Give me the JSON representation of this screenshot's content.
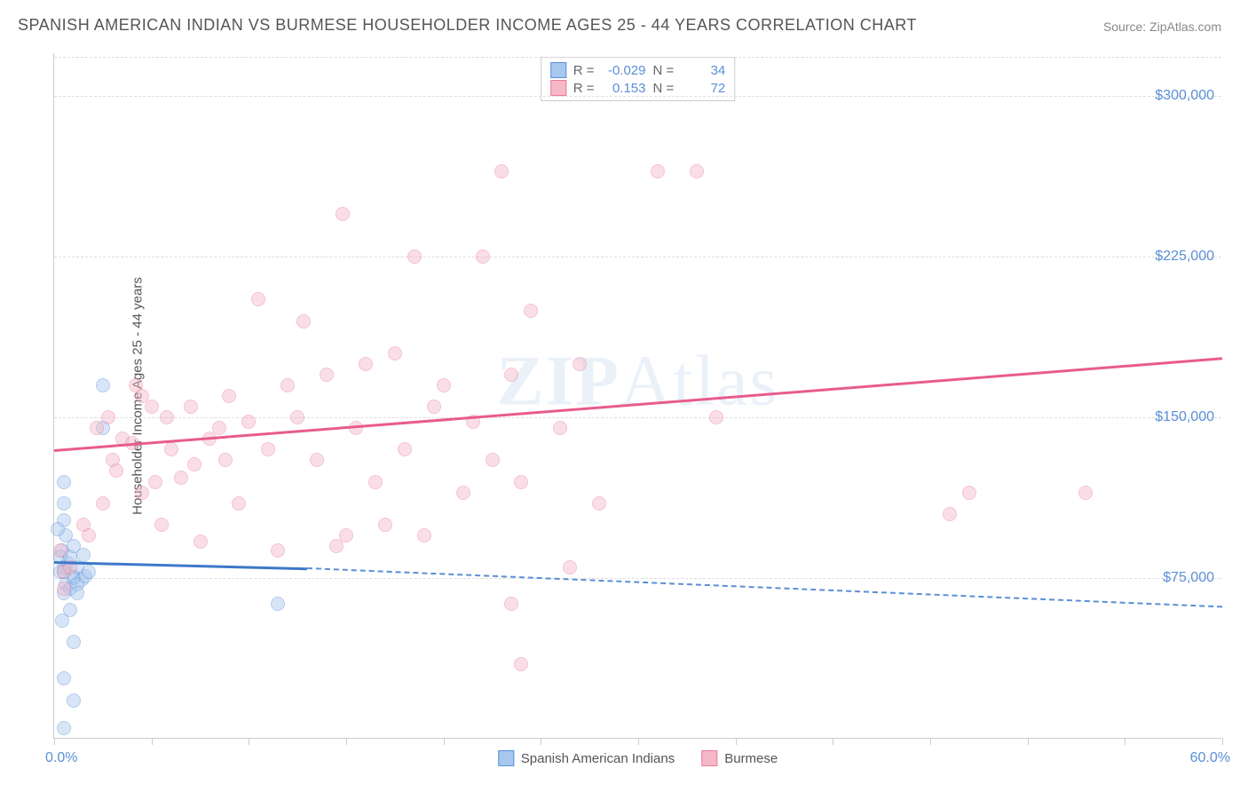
{
  "title": "SPANISH AMERICAN INDIAN VS BURMESE HOUSEHOLDER INCOME AGES 25 - 44 YEARS CORRELATION CHART",
  "source": "Source: ZipAtlas.com",
  "watermark_zip": "ZIP",
  "watermark_atlas": "Atlas",
  "chart": {
    "type": "scatter",
    "y_axis_title": "Householder Income Ages 25 - 44 years",
    "xlim": [
      0,
      60
    ],
    "ylim": [
      0,
      320000
    ],
    "x_tick_positions": [
      0,
      5,
      10,
      15,
      20,
      25,
      30,
      35,
      40,
      45,
      50,
      55,
      60
    ],
    "x_label_min": "0.0%",
    "x_label_max": "60.0%",
    "y_ticks": [
      75000,
      150000,
      225000,
      300000
    ],
    "y_tick_labels": [
      "$75,000",
      "$150,000",
      "$225,000",
      "$300,000"
    ],
    "grid_color": "#dddddd",
    "background_color": "#ffffff",
    "axis_color": "#cccccc",
    "tick_label_color": "#5a8fd6",
    "point_radius": 8,
    "point_opacity": 0.45,
    "series": [
      {
        "name": "Spanish American Indians",
        "color_fill": "#a7c7ef",
        "color_stroke": "#5a8fd6",
        "r_value": "-0.029",
        "n_value": "34",
        "trend": {
          "x1": 0,
          "y1": 83000,
          "x2": 13,
          "y2": 80000,
          "extend_x2": 60,
          "extend_y2": 62000,
          "solid_color": "#3d78c9",
          "dash_color": "#5a8fd6"
        },
        "points": [
          [
            0.5,
            120000
          ],
          [
            0.5,
            110000
          ],
          [
            0.5,
            102000
          ],
          [
            0.6,
            95000
          ],
          [
            0.4,
            88000
          ],
          [
            0.7,
            82000
          ],
          [
            0.3,
            85000
          ],
          [
            0.5,
            78000
          ],
          [
            0.5,
            80000
          ],
          [
            0.8,
            85000
          ],
          [
            1.0,
            90000
          ],
          [
            0.6,
            72000
          ],
          [
            1.0,
            76000
          ],
          [
            1.2,
            80000
          ],
          [
            0.8,
            70000
          ],
          [
            0.5,
            68000
          ],
          [
            0.8,
            60000
          ],
          [
            1.0,
            75000
          ],
          [
            1.4,
            74000
          ],
          [
            1.2,
            72000
          ],
          [
            1.6,
            76000
          ],
          [
            2.5,
            165000
          ],
          [
            2.5,
            145000
          ],
          [
            0.4,
            55000
          ],
          [
            1.0,
            45000
          ],
          [
            0.5,
            28000
          ],
          [
            1.0,
            18000
          ],
          [
            0.5,
            5000
          ],
          [
            0.2,
            98000
          ],
          [
            1.5,
            86000
          ],
          [
            1.2,
            68000
          ],
          [
            0.3,
            78000
          ],
          [
            1.8,
            78000
          ],
          [
            11.5,
            63000
          ]
        ]
      },
      {
        "name": "Burmese",
        "color_fill": "#f6b8c8",
        "color_stroke": "#e87a9b",
        "r_value": "0.153",
        "n_value": "72",
        "trend": {
          "x1": 0,
          "y1": 135000,
          "x2": 60,
          "y2": 178000,
          "solid_color": "#e85c8a"
        },
        "points": [
          [
            0.5,
            78000
          ],
          [
            0.5,
            70000
          ],
          [
            0.3,
            88000
          ],
          [
            0.8,
            80000
          ],
          [
            1.5,
            100000
          ],
          [
            1.8,
            95000
          ],
          [
            2.2,
            145000
          ],
          [
            2.5,
            110000
          ],
          [
            2.8,
            150000
          ],
          [
            3.0,
            130000
          ],
          [
            3.5,
            140000
          ],
          [
            3.2,
            125000
          ],
          [
            4.0,
            138000
          ],
          [
            4.2,
            165000
          ],
          [
            4.5,
            115000
          ],
          [
            5.0,
            155000
          ],
          [
            5.2,
            120000
          ],
          [
            5.5,
            100000
          ],
          [
            5.8,
            150000
          ],
          [
            6.0,
            135000
          ],
          [
            6.5,
            122000
          ],
          [
            7.0,
            155000
          ],
          [
            7.2,
            128000
          ],
          [
            7.5,
            92000
          ],
          [
            8.0,
            140000
          ],
          [
            8.5,
            145000
          ],
          [
            8.8,
            130000
          ],
          [
            9.0,
            160000
          ],
          [
            9.5,
            110000
          ],
          [
            10.0,
            148000
          ],
          [
            10.5,
            205000
          ],
          [
            11.0,
            135000
          ],
          [
            11.5,
            88000
          ],
          [
            12.0,
            165000
          ],
          [
            12.5,
            150000
          ],
          [
            12.8,
            195000
          ],
          [
            13.5,
            130000
          ],
          [
            14.0,
            170000
          ],
          [
            14.5,
            90000
          ],
          [
            14.8,
            245000
          ],
          [
            15.5,
            145000
          ],
          [
            16.0,
            175000
          ],
          [
            16.5,
            120000
          ],
          [
            17.0,
            100000
          ],
          [
            17.5,
            180000
          ],
          [
            18.0,
            135000
          ],
          [
            18.5,
            225000
          ],
          [
            19.0,
            95000
          ],
          [
            19.5,
            155000
          ],
          [
            20.0,
            165000
          ],
          [
            21.0,
            115000
          ],
          [
            21.5,
            148000
          ],
          [
            22.0,
            225000
          ],
          [
            22.5,
            130000
          ],
          [
            23.0,
            265000
          ],
          [
            23.5,
            170000
          ],
          [
            24.0,
            120000
          ],
          [
            24.0,
            35000
          ],
          [
            24.5,
            200000
          ],
          [
            26.0,
            145000
          ],
          [
            26.5,
            80000
          ],
          [
            27.0,
            175000
          ],
          [
            28.0,
            110000
          ],
          [
            23.5,
            63000
          ],
          [
            31.0,
            265000
          ],
          [
            33.0,
            265000
          ],
          [
            34.0,
            150000
          ],
          [
            46.0,
            105000
          ],
          [
            47.0,
            115000
          ],
          [
            53.0,
            115000
          ],
          [
            15.0,
            95000
          ],
          [
            4.5,
            160000
          ]
        ]
      }
    ]
  },
  "stats_legend": {
    "r_label": "R =",
    "n_label": "N ="
  }
}
